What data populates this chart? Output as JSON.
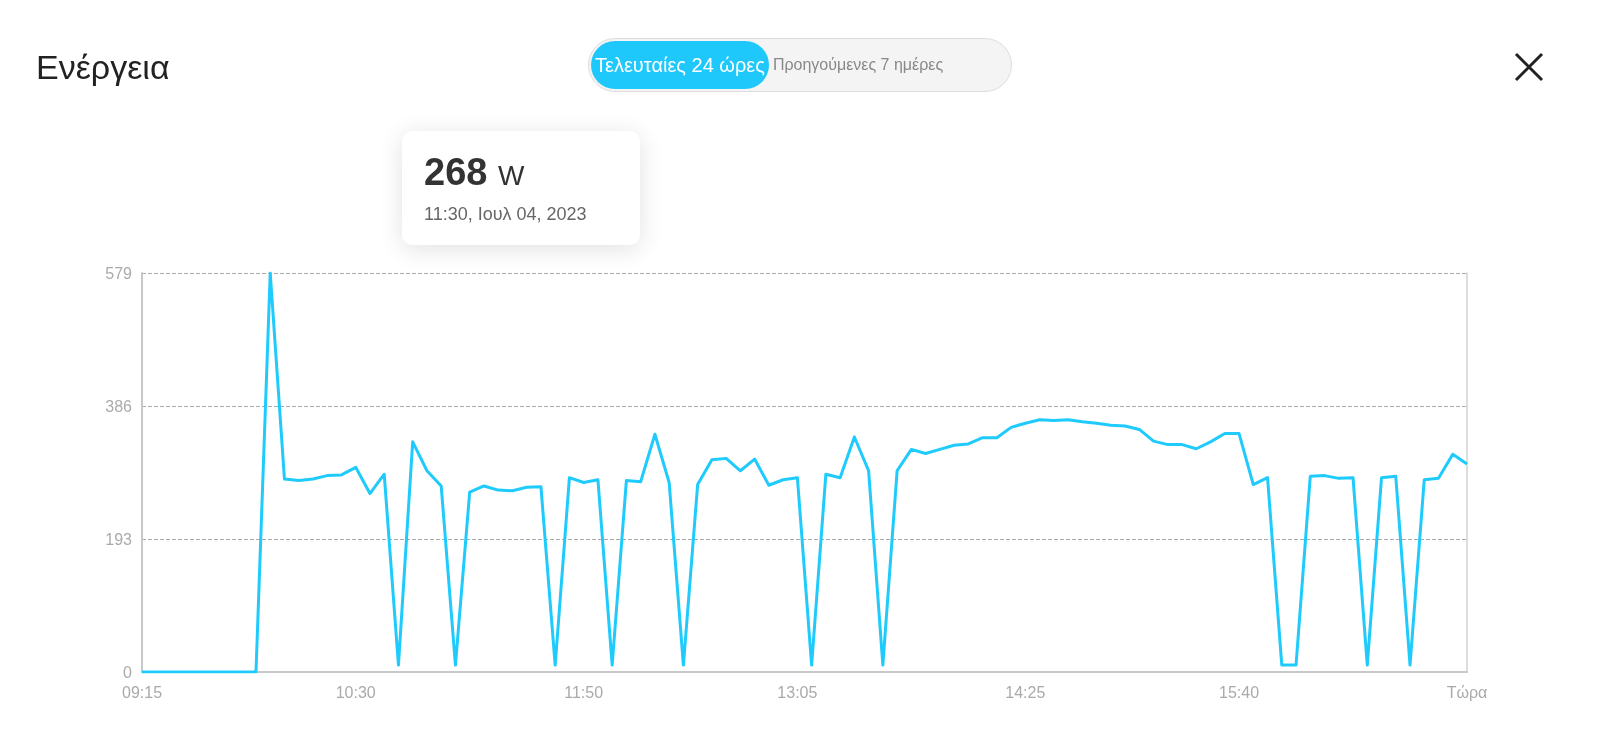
{
  "chart_data": {
    "type": "line",
    "title": "Ενέργεια",
    "annotations": [
      "268 W",
      "11:30, Ιουλ 04, 2023",
      "Τελευταίες 24 ώρες",
      "Προηγούμενες 7 ημέρες"
    ],
    "x": [
      9.25,
      9.9167,
      10,
      10.0833,
      10.1667,
      10.25,
      10.3333,
      10.4167,
      10.5,
      10.5833,
      10.6667,
      10.75,
      10.8333,
      10.9167,
      11,
      11.0833,
      11.1667,
      11.25,
      11.3333,
      11.4167,
      11.5,
      11.5833,
      11.6667,
      11.75,
      11.8333,
      11.9167,
      12,
      12.0833,
      12.1667,
      12.25,
      12.3333,
      12.4167,
      12.5,
      12.5833,
      12.6667,
      12.75,
      12.8333,
      12.9167,
      13,
      13.0833,
      13.1667,
      13.25,
      13.3333,
      13.4167,
      13.5,
      13.5833,
      13.6667,
      13.75,
      13.8333,
      13.9167,
      14,
      14.0833,
      14.1667,
      14.25,
      14.3333,
      14.4167,
      14.5,
      14.5833,
      14.6667,
      14.75,
      14.8333,
      14.9167,
      15,
      15.0833,
      15.1667,
      15.25,
      15.3333,
      15.4167,
      15.5,
      15.5833,
      15.6667,
      15.75,
      15.8333,
      15.9167,
      16,
      16.0833,
      16.1667,
      16.25,
      16.3333,
      16.4167,
      16.5,
      16.5833,
      16.6667,
      16.75,
      16.8333,
      16.9167,
      17
    ],
    "series": [
      {
        "color": "#1ecbfc",
        "values": [
          0,
          0,
          579,
          280,
          278,
          280,
          285,
          286,
          297,
          259,
          287,
          10,
          334,
          292,
          270,
          10,
          261,
          270,
          264,
          263,
          268,
          269,
          10,
          282,
          275,
          279,
          10,
          278,
          276,
          345,
          275,
          10,
          272,
          308,
          310,
          292,
          309,
          271,
          279,
          282,
          10,
          287,
          282,
          341,
          292,
          10,
          292,
          323,
          317,
          323,
          329,
          331,
          340,
          340,
          355,
          361,
          366,
          365,
          366,
          363,
          361,
          358,
          357,
          352,
          335,
          330,
          330,
          324,
          334,
          346,
          346,
          272,
          282,
          10,
          10,
          284,
          285,
          281,
          282,
          10,
          282,
          284,
          10,
          279,
          281,
          316,
          302
        ]
      }
    ],
    "xlim": [
      9.25,
      17
    ],
    "xticks": [
      {
        "value": 9.25,
        "label": "09:15"
      },
      {
        "value": 10.5,
        "label": "10:30"
      },
      {
        "value": 11.8333,
        "label": "11:50"
      },
      {
        "value": 13.0833,
        "label": "13:05"
      },
      {
        "value": 14.4167,
        "label": "14:25"
      },
      {
        "value": 15.6667,
        "label": "15:40"
      },
      {
        "value": 17,
        "label": "Τώρα"
      }
    ],
    "ylim": [
      0,
      579
    ],
    "yticks": [
      0,
      193,
      386,
      579
    ],
    "grid": "y"
  }
}
